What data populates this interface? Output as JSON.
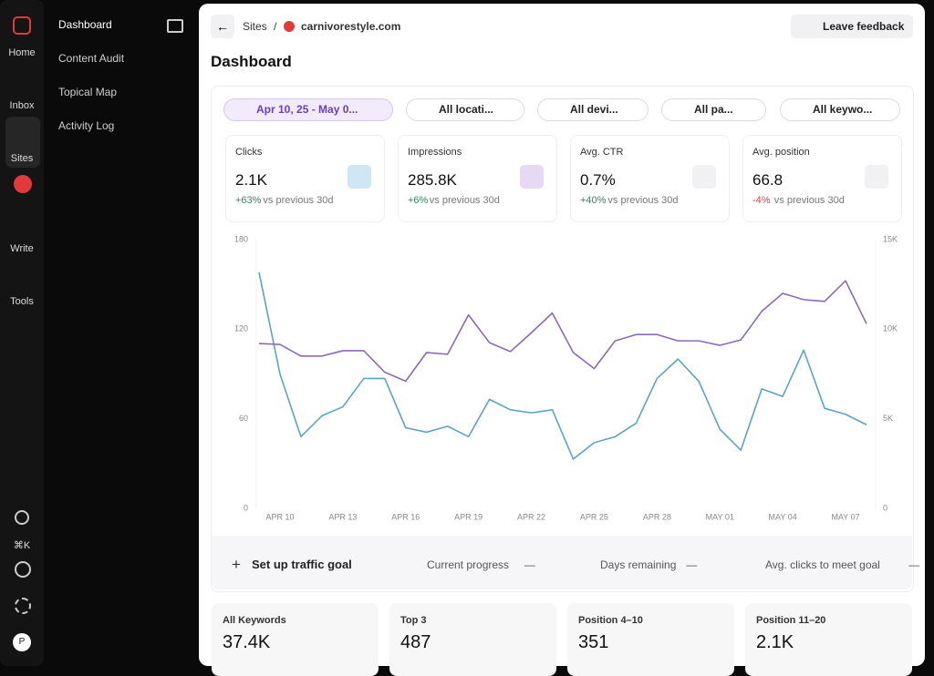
{
  "rail": {
    "items": [
      "Home",
      "Inbox",
      "Sites",
      "Write",
      "Tools"
    ],
    "shortcut": "⌘K",
    "avatar": "P"
  },
  "sidebar": {
    "nav": [
      "Dashboard",
      "Content Audit",
      "Topical Map",
      "Activity Log"
    ]
  },
  "header": {
    "breadcrumb": [
      "Sites",
      "/",
      "carnivorestyle.com"
    ],
    "feedback": "Leave feedback",
    "title": "Dashboard"
  },
  "filters": [
    "Apr 10, 25 - May 0...",
    "All locati...",
    "All devi...",
    "All pa...",
    "All keywo..."
  ],
  "metrics": [
    {
      "label": "Clicks",
      "value": "2.1K",
      "change": "+63%",
      "note": "vs previous 30d"
    },
    {
      "label": "Impressions",
      "value": "285.8K",
      "change": "+6%",
      "note": "vs previous 30d"
    },
    {
      "label": "Avg. CTR",
      "value": "0.7%",
      "change": "+40%",
      "note": "vs previous 30d"
    },
    {
      "label": "Avg. position",
      "value": "66.8",
      "change": "-4%",
      "note": "vs previous 30d"
    }
  ],
  "chart_data": {
    "type": "line",
    "categories": [
      null,
      "APR 10",
      null,
      null,
      "APR 13",
      null,
      null,
      "APR 16",
      null,
      null,
      "APR 19",
      null,
      null,
      "APR 22",
      null,
      null,
      "APR 25",
      null,
      null,
      "APR 28",
      null,
      null,
      "MAY 01",
      null,
      null,
      "MAY 04",
      null,
      null,
      "MAY 07",
      null
    ],
    "series": [
      {
        "color": "#5ba3c9",
        "axis": "y",
        "values": [
          158,
          90,
          48,
          62,
          68,
          87,
          87,
          54,
          51,
          55,
          48,
          73,
          66,
          64,
          66,
          33,
          44,
          48,
          57,
          87,
          100,
          85,
          53,
          39,
          80,
          75,
          106,
          67,
          63,
          56
        ]
      },
      {
        "color": "#8b6bb5",
        "axis": "y2",
        "values": [
          9200,
          9150,
          8500,
          8500,
          8800,
          8800,
          7600,
          7100,
          8700,
          8600,
          10800,
          9250,
          8750,
          9800,
          10900,
          8700,
          7800,
          9350,
          9700,
          9700,
          9350,
          9350,
          9100,
          9400,
          11000,
          12000,
          11650,
          11550,
          12700,
          10300
        ]
      }
    ],
    "ylim": [
      0,
      180
    ],
    "yticks": [
      0,
      60,
      120,
      180
    ],
    "y2lim": [
      0,
      15000
    ],
    "y2ticks": [
      0,
      {
        "value": 5000,
        "label": "5K"
      },
      {
        "value": 10000,
        "label": "10K"
      },
      {
        "value": 15000,
        "label": "15K"
      }
    ],
    "grid": false
  },
  "goal": {
    "action": "Set up traffic goal",
    "items": [
      {
        "label": "Current progress",
        "value": "—"
      },
      {
        "label": "Days remaining",
        "value": "—"
      },
      {
        "label": "Avg. clicks to meet goal",
        "value": "—"
      }
    ]
  },
  "keywords": [
    {
      "label": "All Keywords",
      "value": "37.4K"
    },
    {
      "label": "Top 3",
      "value": "487"
    },
    {
      "label": "Position 4–10",
      "value": "351"
    },
    {
      "label": "Position 11–20",
      "value": "2.1K"
    }
  ]
}
